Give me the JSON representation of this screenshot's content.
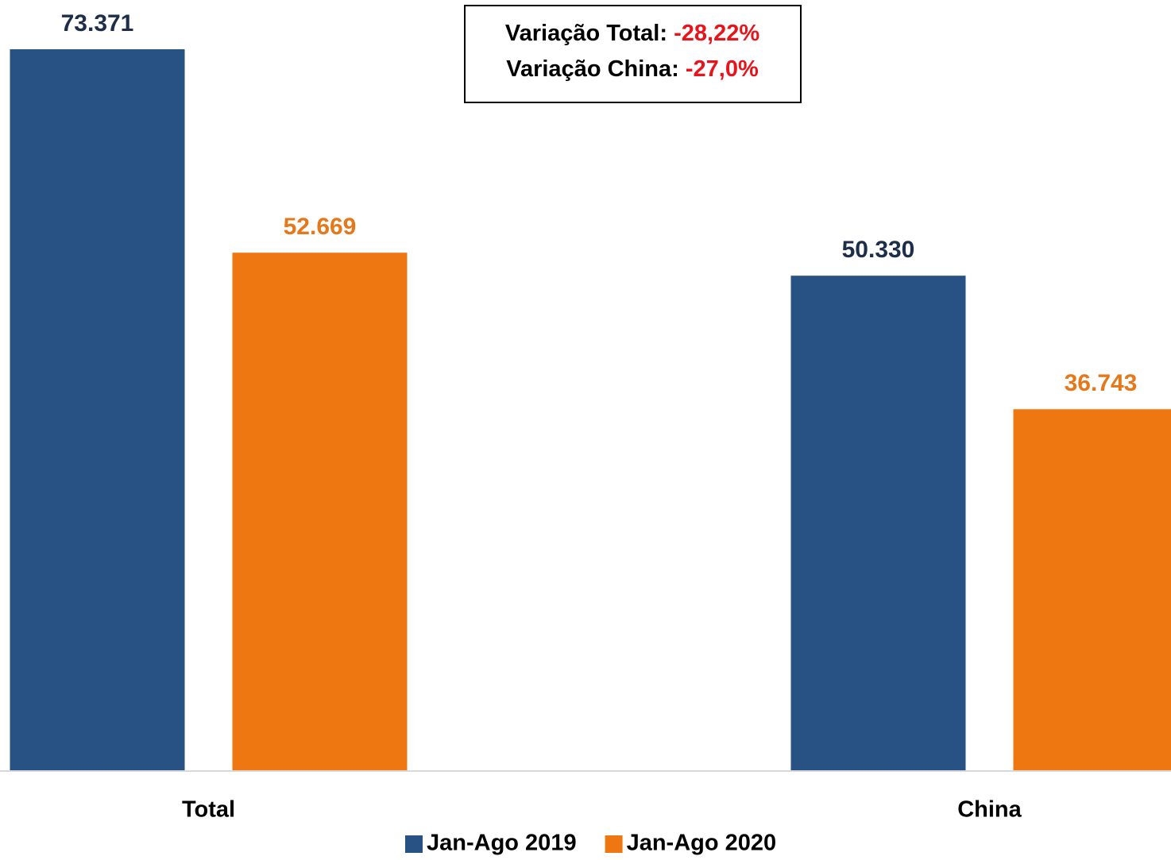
{
  "chart_data": {
    "type": "bar",
    "categories": [
      "Total",
      "China"
    ],
    "series": [
      {
        "name": "Jan-Ago 2019",
        "color": "#285284",
        "label_color": "#1c2e4a",
        "values": [
          73371,
          50330
        ],
        "value_labels": [
          "73.371",
          "50.330"
        ]
      },
      {
        "name": "Jan-Ago 2020",
        "color": "#ef7712",
        "label_color": "#e5781b",
        "values": [
          52669,
          36743
        ],
        "value_labels": [
          "52.669",
          "36.743"
        ]
      }
    ],
    "ylim": [
      0,
      80000
    ],
    "annotations": [
      {
        "label": "Variação Total:",
        "value": "-28,22%"
      },
      {
        "label": "Variação China:",
        "value": "-27,0%"
      }
    ],
    "legend": "bottom"
  }
}
